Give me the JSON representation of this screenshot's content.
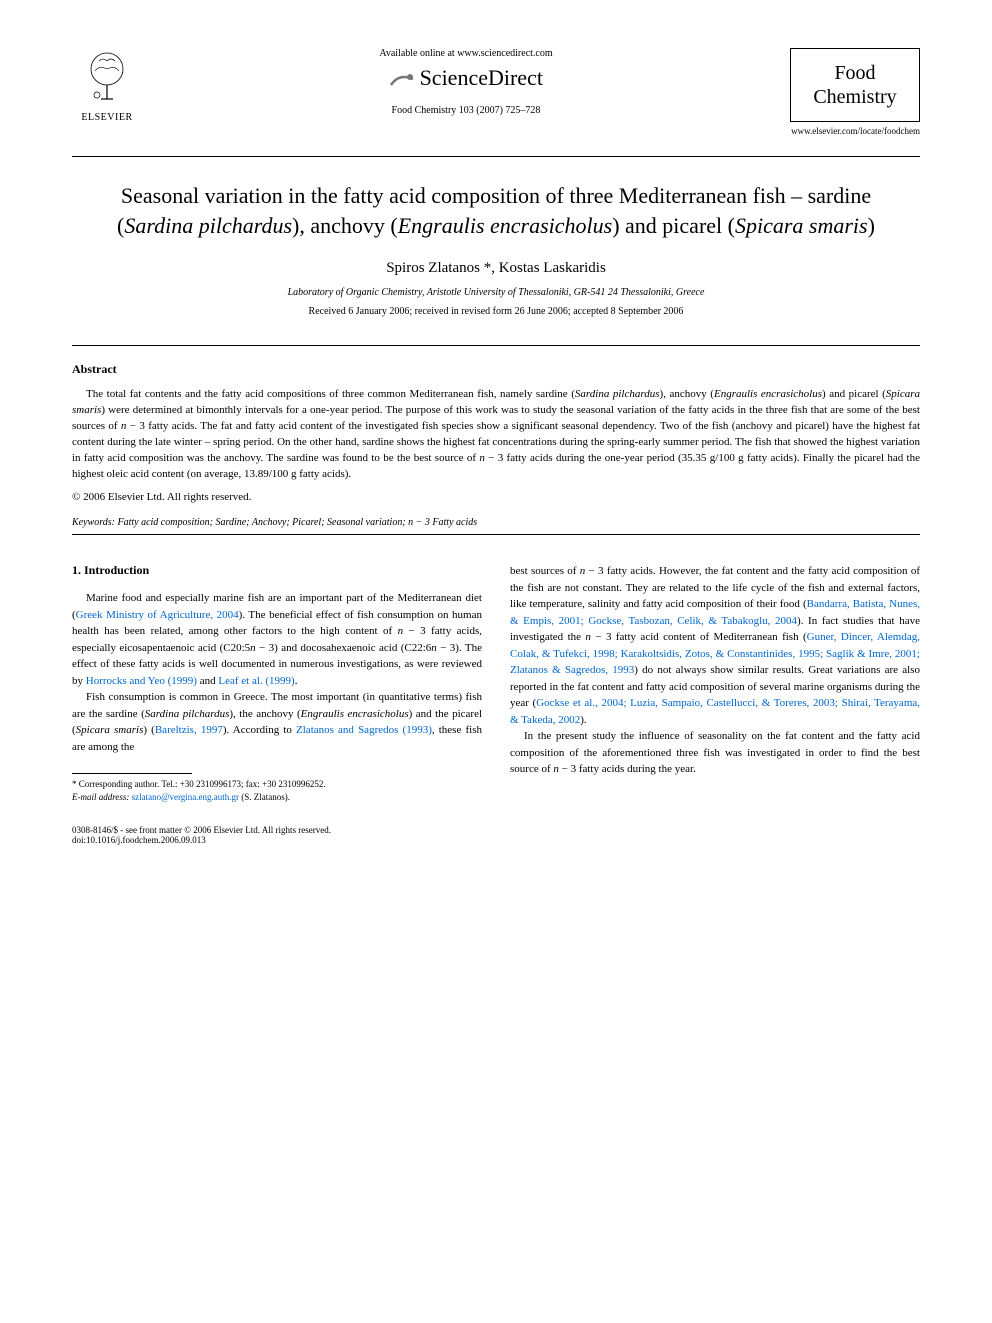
{
  "header": {
    "available_online": "Available online at www.sciencedirect.com",
    "sciencedirect": "ScienceDirect",
    "journal_ref": "Food Chemistry 103 (2007) 725–728",
    "journal_name_line1": "Food",
    "journal_name_line2": "Chemistry",
    "journal_url": "www.elsevier.com/locate/foodchem",
    "elsevier": "ELSEVIER"
  },
  "article": {
    "title_html": "Seasonal variation in the fatty acid composition of three Mediterranean fish – sardine (<em>Sardina pilchardus</em>), anchovy (<em>Engraulis encrasicholus</em>) and picarel (<em>Spicara smaris</em>)",
    "authors": "Spiros Zlatanos *, Kostas Laskaridis",
    "affiliation": "Laboratory of Organic Chemistry, Aristotle University of Thessaloniki, GR-541 24 Thessaloniki, Greece",
    "dates": "Received 6 January 2006; received in revised form 26 June 2006; accepted 8 September 2006"
  },
  "abstract": {
    "label": "Abstract",
    "text_html": "The total fat contents and the fatty acid compositions of three common Mediterranean fish, namely sardine (<em>Sardina pilchardus</em>), anchovy (<em>Engraulis encrasicholus</em>) and picarel (<em>Spicara smaris</em>) were determined at bimonthly intervals for a one-year period. The purpose of this work was to study the seasonal variation of the fatty acids in the three fish that are some of the best sources of <em>n</em> − 3 fatty acids. The fat and fatty acid content of the investigated fish species show a significant seasonal dependency. Two of the fish (anchovy and picarel) have the highest fat content during the late winter – spring period. On the other hand, sardine shows the highest fat concentrations during the spring-early summer period. The fish that showed the highest variation in fatty acid composition was the anchovy. The sardine was found to be the best source of <em>n</em> − 3 fatty acids during the one-year period (35.35 g/100 g fatty acids). Finally the picarel had the highest oleic acid content (on average, 13.89/100 g fatty acids).",
    "copyright": "© 2006 Elsevier Ltd. All rights reserved."
  },
  "keywords": {
    "label": "Keywords:",
    "text_html": "Fatty acid composition; Sardine; Anchovy; Picarel; Seasonal variation; <em>n</em> − 3 Fatty acids"
  },
  "body": {
    "section_heading": "1. Introduction",
    "left": {
      "p1_html": "Marine food and especially marine fish are an important part of the Mediterranean diet (<span class=\"cite\">Greek Ministry of Agriculture, 2004</span>). The beneficial effect of fish consumption on human health has been related, among other factors to the high content of <em>n</em> − 3 fatty acids, especially eicosapentaenoic acid (C20:5<em>n</em> − 3) and docosahexaenoic acid (C22:6<em>n</em> − 3). The effect of these fatty acids is well documented in numerous investigations, as were reviewed by <span class=\"cite\">Horrocks and Yeo (1999)</span> and <span class=\"cite\">Leaf et al. (1999)</span>.",
      "p2_html": "Fish consumption is common in Greece. The most important (in quantitative terms) fish are the sardine (<em>Sardina pilchardus</em>), the anchovy (<em>Engraulis encrasicholus</em>) and the picarel (<em>Spicara smaris</em>) (<span class=\"cite\">Bareltzis, 1997</span>). According to <span class=\"cite\">Zlatanos and Sagredos (1993)</span>, these fish are among the"
    },
    "right": {
      "p1_html": "best sources of <em>n</em> − 3 fatty acids. However, the fat content and the fatty acid composition of the fish are not constant. They are related to the life cycle of the fish and external factors, like temperature, salinity and fatty acid composition of their food (<span class=\"cite\">Bandarra, Batista, Nunes, & Empis, 2001; Gockse, Tasbozan, Celik, & Tabakoglu, 2004</span>). In fact studies that have investigated the <em>n</em> − 3 fatty acid content of Mediterranean fish (<span class=\"cite\">Guner, Dincer, Alemdag, Colak, & Tufekci, 1998; Karakoltsidis, Zotos, & Constantinides, 1995; Saglik & Imre, 2001; Zlatanos & Sagredos, 1993</span>) do not always show similar results. Great variations are also reported in the fat content and fatty acid composition of several marine organisms during the year (<span class=\"cite\">Gockse et al., 2004; Luzia, Sampaio, Castellucci, & Toreres, 2003; Shirai, Terayama, & Takeda, 2002</span>).",
      "p2_html": "In the present study the influence of seasonality on the fat content and the fatty acid composition of the aforementioned three fish was investigated in order to find the best source of <em>n</em> − 3 fatty acids during the year."
    }
  },
  "footnote": {
    "corresponding": "* Corresponding author. Tel.: +30 2310996173; fax: +30 2310996252.",
    "email_label": "E-mail address:",
    "email": "szlatano@vergina.eng.auth.gr",
    "email_suffix": "(S. Zlatanos)."
  },
  "footer": {
    "left_line1": "0308-8146/$ - see front matter © 2006 Elsevier Ltd. All rights reserved.",
    "left_line2": "doi:10.1016/j.foodchem.2006.09.013"
  },
  "colors": {
    "link": "#0066cc",
    "text": "#000000",
    "background": "#ffffff"
  },
  "typography": {
    "title_fontsize": 22,
    "authors_fontsize": 15,
    "body_fontsize": 11,
    "footnote_fontsize": 9
  }
}
